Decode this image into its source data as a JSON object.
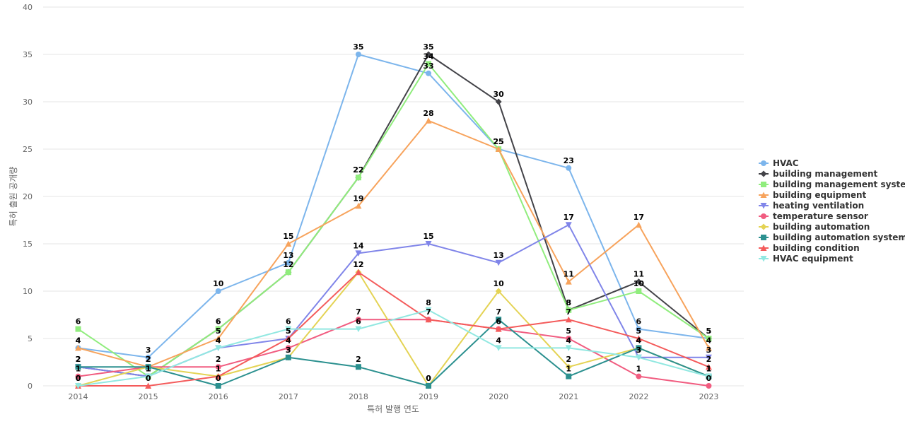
{
  "chart_data": {
    "type": "line",
    "xlabel": "특허 발행 연도",
    "ylabel": "특허 출원 공개량",
    "categories": [
      "2014",
      "2015",
      "2016",
      "2017",
      "2018",
      "2019",
      "2020",
      "2021",
      "2022",
      "2023"
    ],
    "ylim": [
      0,
      40
    ],
    "yticks": [
      0,
      5,
      10,
      15,
      20,
      25,
      30,
      35,
      40
    ],
    "grid": true,
    "legend": "right",
    "series": [
      {
        "name": "HVAC",
        "color": "#7cb5ec",
        "marker": "circle",
        "values": [
          4,
          3,
          10,
          13,
          35,
          33,
          25,
          23,
          6,
          5
        ]
      },
      {
        "name": "building management",
        "color": "#434348",
        "marker": "diamond",
        "values": [
          2,
          1,
          6,
          12,
          22,
          35,
          30,
          8,
          11,
          5
        ]
      },
      {
        "name": "building management system",
        "color": "#90ed7d",
        "marker": "square",
        "values": [
          6,
          1,
          6,
          12,
          22,
          34,
          25,
          8,
          10,
          5
        ]
      },
      {
        "name": "building equipment",
        "color": "#f7a35c",
        "marker": "triangle",
        "values": [
          4,
          2,
          5,
          15,
          19,
          28,
          25,
          11,
          17,
          4
        ]
      },
      {
        "name": "heating ventilation",
        "color": "#8085e9",
        "marker": "triangle-down",
        "values": [
          2,
          1,
          4,
          5,
          14,
          15,
          13,
          17,
          3,
          3
        ]
      },
      {
        "name": "temperature sensor",
        "color": "#f15c80",
        "marker": "circle",
        "values": [
          1,
          2,
          2,
          4,
          7,
          7,
          6,
          5,
          1,
          0
        ]
      },
      {
        "name": "building automation",
        "color": "#e4d354",
        "marker": "diamond",
        "values": [
          0,
          2,
          1,
          3,
          12,
          0,
          10,
          2,
          4,
          1
        ]
      },
      {
        "name": "building automation system",
        "color": "#2b908f",
        "marker": "square",
        "values": [
          2,
          2,
          0,
          3,
          2,
          0,
          7,
          1,
          4,
          1
        ]
      },
      {
        "name": "building condition",
        "color": "#f45b5b",
        "marker": "triangle",
        "values": [
          0,
          0,
          1,
          5,
          12,
          7,
          6,
          7,
          5,
          2
        ]
      },
      {
        "name": "HVAC equipment",
        "color": "#91e8e1",
        "marker": "triangle-down",
        "values": [
          0,
          1,
          4,
          6,
          6,
          8,
          4,
          4,
          3,
          1
        ]
      }
    ]
  }
}
